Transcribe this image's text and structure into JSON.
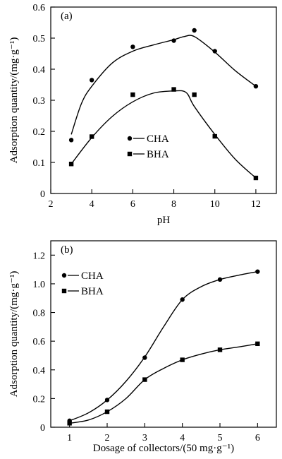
{
  "chart_data": [
    {
      "type": "scatter",
      "panel_label": "(a)",
      "xlabel": "pH",
      "ylabel": "Adsorption quantity/(mg·g⁻¹)",
      "xlim": [
        2,
        13
      ],
      "ylim": [
        0,
        0.6
      ],
      "x_ticks": [
        2,
        4,
        6,
        8,
        10,
        12
      ],
      "y_ticks": [
        0,
        0.1,
        0.2,
        0.3,
        0.4,
        0.5,
        0.6
      ],
      "x_tick_labels": [
        "2",
        "4",
        "6",
        "8",
        "10",
        "12"
      ],
      "y_tick_labels": [
        "0",
        "0.1",
        "0.2",
        "0.3",
        "0.4",
        "0.5",
        "0.6"
      ],
      "grid": false,
      "legend_position": "center",
      "series": [
        {
          "name": "CHA",
          "marker": "circle",
          "x": [
            3,
            4,
            6,
            8,
            9,
            10,
            12
          ],
          "y": [
            0.172,
            0.365,
            0.472,
            0.492,
            0.525,
            0.458,
            0.345
          ],
          "fit_x": [
            3,
            3.5,
            4,
            5,
            6,
            7,
            8,
            8.5,
            9,
            10,
            11,
            12
          ],
          "fit_y": [
            0.19,
            0.29,
            0.345,
            0.42,
            0.458,
            0.478,
            0.495,
            0.505,
            0.505,
            0.455,
            0.395,
            0.345
          ]
        },
        {
          "name": "BHA",
          "marker": "square",
          "x": [
            3,
            4,
            6,
            8,
            9,
            10,
            12
          ],
          "y": [
            0.095,
            0.183,
            0.318,
            0.335,
            0.318,
            0.184,
            0.05
          ],
          "fit_x": [
            3,
            4,
            5,
            6,
            7,
            8,
            8.6,
            9,
            10,
            11,
            12
          ],
          "fit_y": [
            0.095,
            0.18,
            0.248,
            0.295,
            0.323,
            0.33,
            0.325,
            0.28,
            0.19,
            0.11,
            0.05
          ]
        }
      ]
    },
    {
      "type": "line",
      "panel_label": "(b)",
      "xlabel": "Dosage of collectors/(50 mg·g⁻¹)",
      "ylabel": "Adsorption quantity/(mg·g⁻¹)",
      "xlim": [
        0.5,
        6.5
      ],
      "ylim": [
        0,
        1.3
      ],
      "x_ticks": [
        1,
        2,
        3,
        4,
        5,
        6
      ],
      "y_ticks": [
        0,
        0.2,
        0.4,
        0.6,
        0.8,
        1.0,
        1.2
      ],
      "x_tick_labels": [
        "1",
        "2",
        "3",
        "4",
        "5",
        "6"
      ],
      "y_tick_labels": [
        "0",
        "0.2",
        "0.4",
        "0.6",
        "0.8",
        "1.0",
        "1.2"
      ],
      "grid": false,
      "legend_position": "top-left",
      "series": [
        {
          "name": "CHA",
          "marker": "circle",
          "x": [
            1,
            2,
            3,
            4,
            5,
            6
          ],
          "y": [
            0.045,
            0.19,
            0.485,
            0.89,
            1.03,
            1.085
          ],
          "fit_x": [
            1,
            1.5,
            2,
            2.5,
            3,
            3.5,
            4,
            4.5,
            5,
            5.5,
            6
          ],
          "fit_y": [
            0.045,
            0.1,
            0.19,
            0.32,
            0.49,
            0.7,
            0.89,
            0.98,
            1.03,
            1.06,
            1.085
          ]
        },
        {
          "name": "BHA",
          "marker": "square",
          "x": [
            1,
            2,
            3,
            4,
            5,
            6
          ],
          "y": [
            0.028,
            0.108,
            0.332,
            0.47,
            0.54,
            0.582
          ],
          "fit_x": [
            1,
            1.5,
            2,
            2.5,
            3,
            3.5,
            4,
            4.5,
            5,
            5.5,
            6
          ],
          "fit_y": [
            0.028,
            0.05,
            0.108,
            0.2,
            0.332,
            0.41,
            0.47,
            0.51,
            0.54,
            0.56,
            0.582
          ]
        }
      ]
    }
  ]
}
